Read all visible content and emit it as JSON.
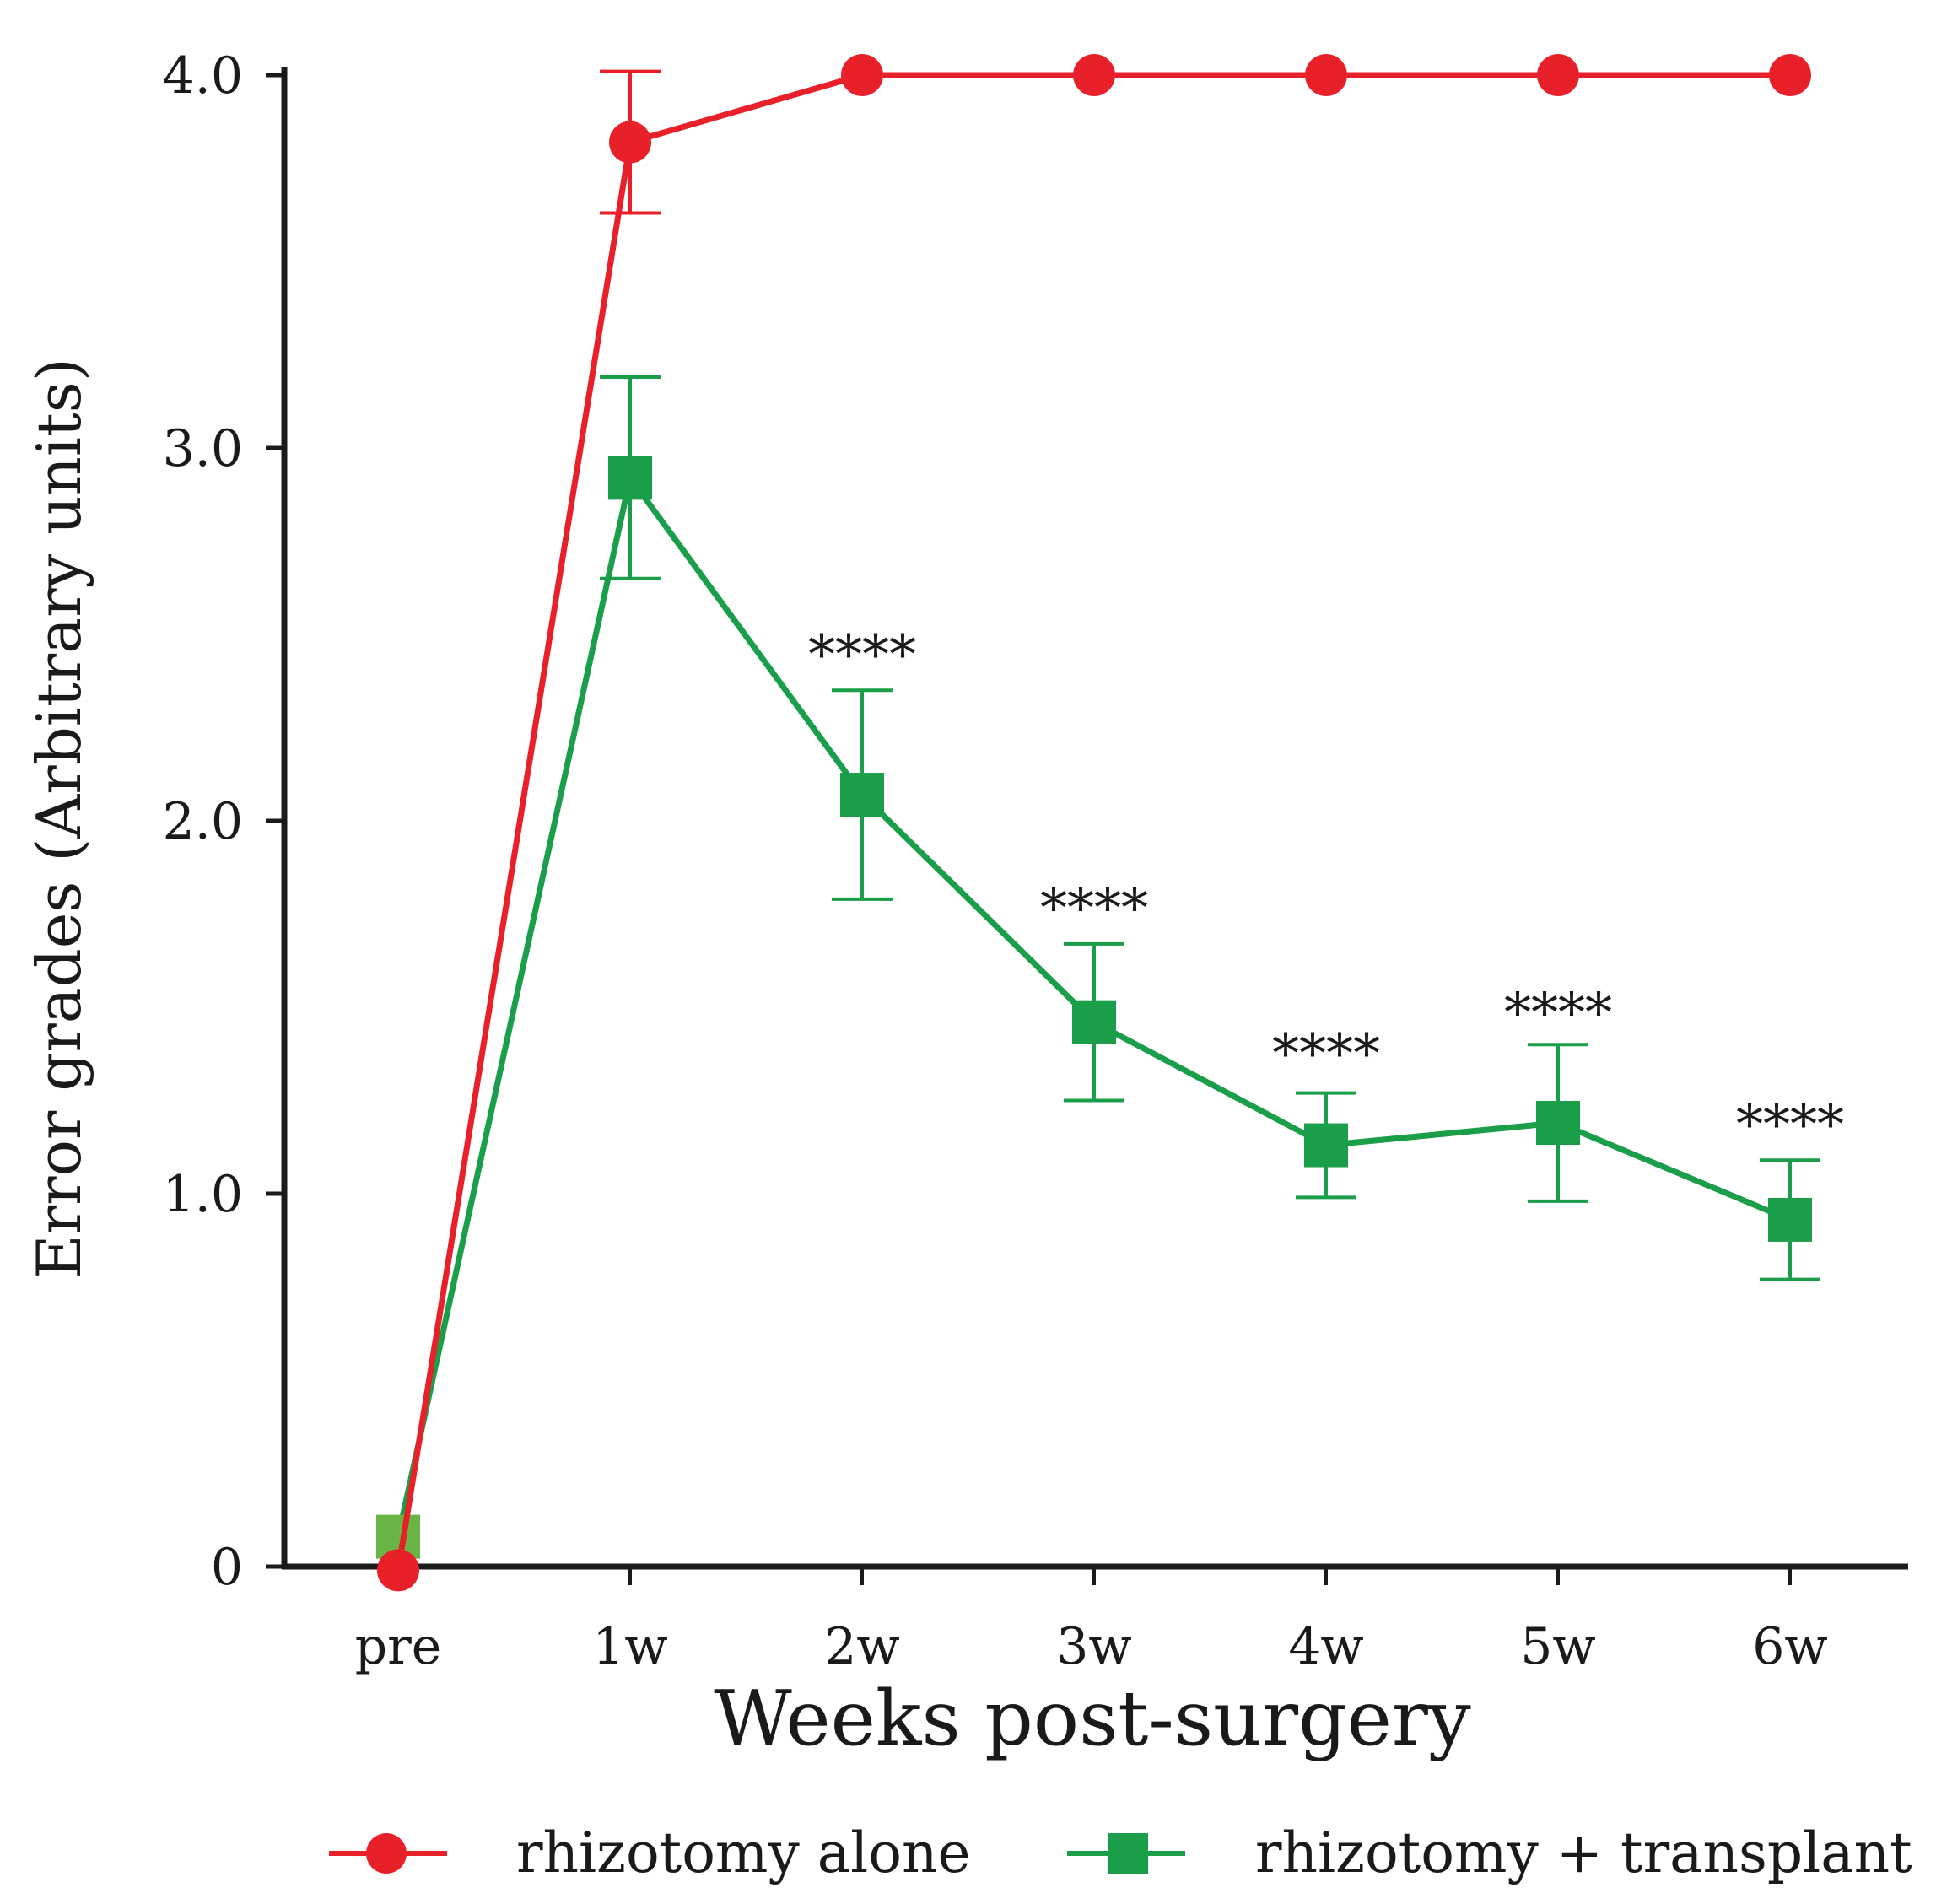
{
  "chart_data": {
    "type": "line",
    "title": "",
    "xlabel": "Weeks post-surgery",
    "ylabel": "Error grades (Arbitrary units)",
    "categories": [
      "pre",
      "1w",
      "2w",
      "3w",
      "4w",
      "5w",
      "6w"
    ],
    "ylim": [
      0,
      4.0
    ],
    "yticks": [
      {
        "value": 0,
        "label": "0"
      },
      {
        "value": 1.0,
        "label": "1.0"
      },
      {
        "value": 2.0,
        "label": "2.0"
      },
      {
        "value": 3.0,
        "label": "3.0"
      },
      {
        "value": 4.0,
        "label": "4.0"
      }
    ],
    "grid": false,
    "legend_position": "bottom",
    "series": [
      {
        "name": "rhizotomy alone",
        "marker": "circle",
        "color": "#e8202a",
        "values": [
          -0.01,
          3.82,
          4.0,
          4.0,
          4.0,
          4.0,
          4.0
        ],
        "error": [
          null,
          0.19,
          null,
          null,
          null,
          null,
          null
        ]
      },
      {
        "name": "rhizotomy + transplant",
        "marker": "square",
        "color": "#1a9e4a",
        "first_marker_color": "#6ab446",
        "values": [
          0.08,
          2.92,
          2.07,
          1.46,
          1.13,
          1.19,
          0.93
        ],
        "error": [
          null,
          0.27,
          0.28,
          0.21,
          0.14,
          0.21,
          0.16
        ]
      }
    ],
    "annotations": [
      {
        "category": "2w",
        "text": "****",
        "y": 2.45
      },
      {
        "category": "3w",
        "text": "****",
        "y": 1.77
      },
      {
        "category": "4w",
        "text": "****",
        "y": 1.38
      },
      {
        "category": "5w",
        "text": "****",
        "y": 1.49
      },
      {
        "category": "6w",
        "text": "****",
        "y": 1.19
      }
    ]
  }
}
